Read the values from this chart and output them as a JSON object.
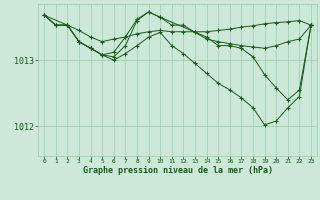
{
  "bg_color": "#cce8d8",
  "grid_color": "#99ccaa",
  "line_color": "#1a5c1a",
  "marker_color": "#1a5c1a",
  "xlabel": "Graphe pression niveau de la mer (hPa)",
  "xlabel_color": "#1a5c1a",
  "tick_color": "#1a5c1a",
  "ylim": [
    1011.55,
    1013.85
  ],
  "xlim": [
    -0.5,
    23.5
  ],
  "yticks": [
    1012,
    1013
  ],
  "xticks": [
    0,
    1,
    2,
    3,
    4,
    5,
    6,
    7,
    8,
    9,
    10,
    11,
    12,
    13,
    14,
    15,
    16,
    17,
    18,
    19,
    20,
    21,
    22,
    23
  ],
  "lines": [
    {
      "x": [
        0,
        1,
        2,
        3,
        4,
        5,
        6,
        7,
        8,
        9,
        10,
        11,
        12,
        13,
        14,
        15,
        16,
        17,
        18,
        19,
        20,
        21,
        22,
        23
      ],
      "y": [
        1013.68,
        1013.53,
        1013.53,
        1013.45,
        1013.35,
        1013.28,
        1013.32,
        1013.35,
        1013.4,
        1013.43,
        1013.45,
        1013.43,
        1013.43,
        1013.43,
        1013.43,
        1013.45,
        1013.47,
        1013.5,
        1013.52,
        1013.55,
        1013.57,
        1013.58,
        1013.6,
        1013.53
      ]
    },
    {
      "x": [
        0,
        1,
        2,
        3,
        4,
        5,
        6,
        7,
        8,
        9,
        10,
        11,
        12,
        13,
        14,
        15,
        16,
        17,
        18,
        19,
        20,
        21,
        22,
        23
      ],
      "y": [
        1013.68,
        1013.53,
        1013.53,
        1013.28,
        1013.18,
        1013.08,
        1013.12,
        1013.35,
        1013.62,
        1013.73,
        1013.65,
        1013.53,
        1013.53,
        1013.42,
        1013.32,
        1013.28,
        1013.25,
        1013.22,
        1013.2,
        1013.18,
        1013.22,
        1013.28,
        1013.32,
        1013.53
      ]
    },
    {
      "x": [
        0,
        2,
        3,
        4,
        5,
        6,
        7,
        8,
        9,
        10,
        14,
        15,
        16,
        17,
        18,
        19,
        20,
        21,
        22,
        23
      ],
      "y": [
        1013.68,
        1013.53,
        1013.28,
        1013.18,
        1013.08,
        1013.05,
        1013.22,
        1013.6,
        1013.73,
        1013.65,
        1013.35,
        1013.22,
        1013.22,
        1013.18,
        1013.05,
        1012.78,
        1012.58,
        1012.4,
        1012.55,
        1013.53
      ]
    },
    {
      "x": [
        0,
        1,
        2,
        3,
        4,
        5,
        6,
        7,
        8,
        9,
        10,
        11,
        12,
        13,
        14,
        15,
        16,
        17,
        18,
        19,
        20,
        21,
        22,
        23
      ],
      "y": [
        1013.68,
        1013.53,
        1013.53,
        1013.28,
        1013.18,
        1013.08,
        1013.0,
        1013.1,
        1013.22,
        1013.35,
        1013.42,
        1013.22,
        1013.1,
        1012.95,
        1012.8,
        1012.65,
        1012.55,
        1012.43,
        1012.28,
        1012.02,
        1012.08,
        1012.28,
        1012.45,
        1013.53
      ]
    }
  ]
}
